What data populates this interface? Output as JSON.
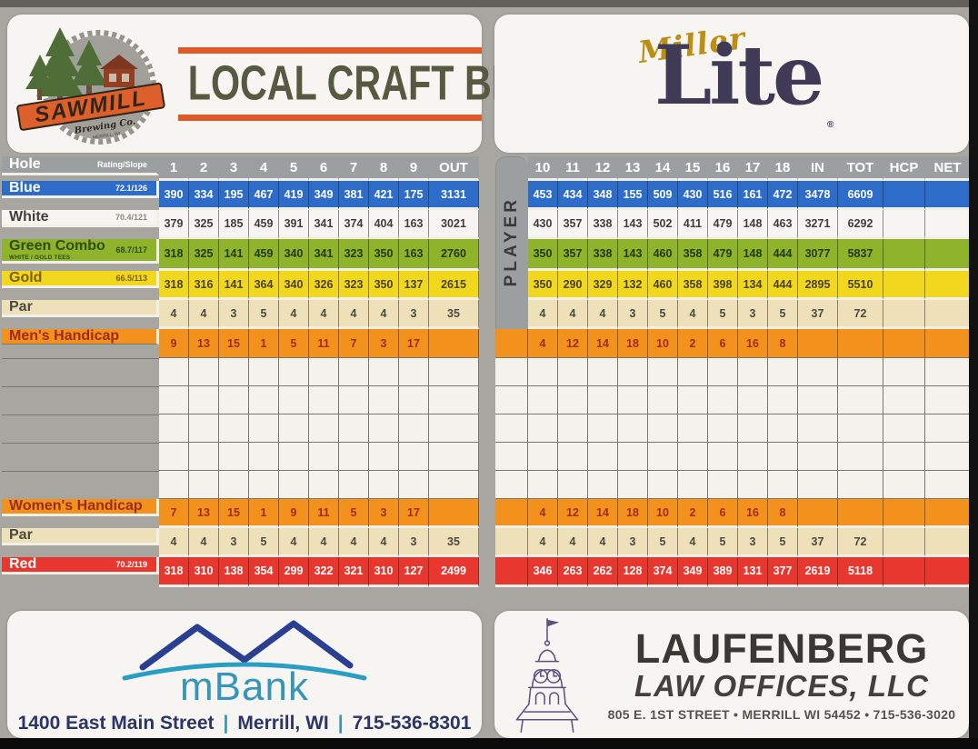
{
  "ads": {
    "sawmill": {
      "brand": "SAWMILL",
      "brand_sub": "Brewing Co.",
      "brand_city": "MERRILL, WI",
      "headline": "LOCAL CRAFT BEER"
    },
    "miller": {
      "script": "Miller",
      "word": "Lite",
      "reg": "®"
    },
    "mbank": {
      "logo": "mBank",
      "address": "1400 East Main Street",
      "city": "Merrill, WI",
      "phone": "715-536-8301"
    },
    "laufenberg": {
      "title": "LAUFENBERG",
      "subtitle": "LAW OFFICES, LLC",
      "address": "805 E. 1ST STREET • MERRILL WI 54452 • 715-536-3020"
    }
  },
  "colors": {
    "blue_tee": "#2d6cc8",
    "green_combo_tee": "#8fb32a",
    "gold_tee": "#f2d71f",
    "red_tee": "#e8372f",
    "handicap_orange": "#f2921d",
    "par_tan": "#eee1b9",
    "header_gray": "#9c9fa0",
    "craft_beer_orange": "#df5a29",
    "miller_gold": "#bd8e14",
    "lite_navy": "#3f3b57",
    "mbank_teal": "#3795b9",
    "mbank_navy": "#2b3f92"
  },
  "scorecard": {
    "player_label": "PLAYER",
    "rows": [
      {
        "id": "header",
        "type": "header",
        "label": "Hole",
        "rating": "Rating/Slope",
        "front": [
          "1",
          "2",
          "3",
          "4",
          "5",
          "6",
          "7",
          "8",
          "9",
          "OUT"
        ],
        "back": [
          "10",
          "11",
          "12",
          "13",
          "14",
          "15",
          "16",
          "17",
          "18",
          "IN",
          "TOT",
          "HCP",
          "NET"
        ]
      },
      {
        "id": "blue",
        "label": "Blue",
        "rating": "72.1/126",
        "front": [
          "390",
          "334",
          "195",
          "467",
          "419",
          "349",
          "381",
          "421",
          "175",
          "3131"
        ],
        "back": [
          "453",
          "434",
          "348",
          "155",
          "509",
          "430",
          "516",
          "161",
          "472",
          "3478",
          "6609",
          "",
          ""
        ]
      },
      {
        "id": "white",
        "label": "White",
        "rating": "70.4/121",
        "front": [
          "379",
          "325",
          "185",
          "459",
          "391",
          "341",
          "374",
          "404",
          "163",
          "3021"
        ],
        "back": [
          "430",
          "357",
          "338",
          "143",
          "502",
          "411",
          "479",
          "148",
          "463",
          "3271",
          "6292",
          "",
          ""
        ]
      },
      {
        "id": "green",
        "label": "Green Combo",
        "sublabel": "WHITE / GOLD TEES",
        "rating": "68.7/117",
        "front": [
          "318",
          "325",
          "141",
          "459",
          "340",
          "341",
          "323",
          "350",
          "163",
          "2760"
        ],
        "back": [
          "350",
          "357",
          "338",
          "143",
          "460",
          "358",
          "479",
          "148",
          "444",
          "3077",
          "5837",
          "",
          ""
        ]
      },
      {
        "id": "gold",
        "label": "Gold",
        "rating": "66.5/113",
        "front": [
          "318",
          "316",
          "141",
          "364",
          "340",
          "326",
          "323",
          "350",
          "137",
          "2615"
        ],
        "back": [
          "350",
          "290",
          "329",
          "132",
          "460",
          "358",
          "398",
          "134",
          "444",
          "2895",
          "5510",
          "",
          ""
        ]
      },
      {
        "id": "par",
        "label": "Par",
        "front": [
          "4",
          "4",
          "3",
          "5",
          "4",
          "4",
          "4",
          "4",
          "3",
          "35"
        ],
        "back": [
          "4",
          "4",
          "4",
          "3",
          "5",
          "4",
          "5",
          "3",
          "5",
          "37",
          "72",
          "",
          ""
        ]
      },
      {
        "id": "mens",
        "label": "Men's Handicap",
        "front": [
          "9",
          "13",
          "15",
          "1",
          "5",
          "11",
          "7",
          "3",
          "17",
          ""
        ],
        "back": [
          "4",
          "12",
          "14",
          "18",
          "10",
          "2",
          "6",
          "16",
          "8",
          "",
          "",
          "",
          ""
        ]
      },
      {
        "id": "p1",
        "type": "empty"
      },
      {
        "id": "p2",
        "type": "empty"
      },
      {
        "id": "p3",
        "type": "empty"
      },
      {
        "id": "p4",
        "type": "empty"
      },
      {
        "id": "p5",
        "type": "empty"
      },
      {
        "id": "womens",
        "label": "Women's Handicap",
        "front": [
          "7",
          "13",
          "15",
          "1",
          "9",
          "11",
          "5",
          "3",
          "17",
          ""
        ],
        "back": [
          "4",
          "12",
          "14",
          "18",
          "10",
          "2",
          "6",
          "16",
          "8",
          "",
          "",
          "",
          ""
        ]
      },
      {
        "id": "par2",
        "label": "Par",
        "front": [
          "4",
          "4",
          "3",
          "5",
          "4",
          "4",
          "4",
          "4",
          "3",
          "35"
        ],
        "back": [
          "4",
          "4",
          "4",
          "3",
          "5",
          "4",
          "5",
          "3",
          "5",
          "37",
          "72",
          "",
          ""
        ]
      },
      {
        "id": "red",
        "label": "Red",
        "rating": "70.2/119",
        "front": [
          "318",
          "310",
          "138",
          "354",
          "299",
          "322",
          "321",
          "310",
          "127",
          "2499"
        ],
        "back": [
          "346",
          "263",
          "262",
          "128",
          "374",
          "349",
          "389",
          "131",
          "377",
          "2619",
          "5118",
          "",
          ""
        ]
      }
    ]
  }
}
